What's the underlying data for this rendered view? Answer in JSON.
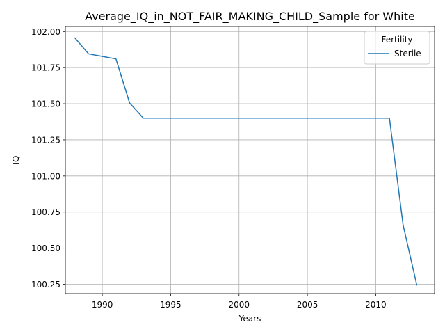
{
  "chart_data": {
    "type": "line",
    "title": "Average_IQ_in_NOT_FAIR_MAKING_CHILD_Sample for White",
    "xlabel": "Years",
    "ylabel": "IQ",
    "xlim": [
      1987.3,
      2014.3
    ],
    "ylim": [
      100.185,
      102.035
    ],
    "x_ticks": [
      1990,
      1995,
      2000,
      2005,
      2010
    ],
    "x_tick_labels": [
      "1990",
      "1995",
      "2000",
      "2005",
      "2010"
    ],
    "y_ticks": [
      100.25,
      100.5,
      100.75,
      101.0,
      101.25,
      101.5,
      101.75,
      102.0
    ],
    "y_tick_labels": [
      "100.25",
      "100.50",
      "100.75",
      "101.00",
      "101.25",
      "101.50",
      "101.75",
      "102.00"
    ],
    "grid": true,
    "legend": {
      "title": "Fertility",
      "placement": "upper-right"
    },
    "series": [
      {
        "name": "Sterile",
        "color": "#1f77b4",
        "x": [
          1988,
          1989,
          1990,
          1991,
          1992,
          1993,
          1994,
          1995,
          1996,
          1997,
          1998,
          1999,
          2000,
          2001,
          2002,
          2003,
          2004,
          2005,
          2006,
          2007,
          2008,
          2009,
          2010,
          2011,
          2012,
          2013
        ],
        "y": [
          101.955,
          101.845,
          101.828,
          101.81,
          101.505,
          101.4,
          101.4,
          101.4,
          101.4,
          101.4,
          101.4,
          101.4,
          101.4,
          101.4,
          101.4,
          101.4,
          101.4,
          101.4,
          101.4,
          101.4,
          101.4,
          101.4,
          101.4,
          101.4,
          100.66,
          100.245
        ]
      }
    ]
  }
}
